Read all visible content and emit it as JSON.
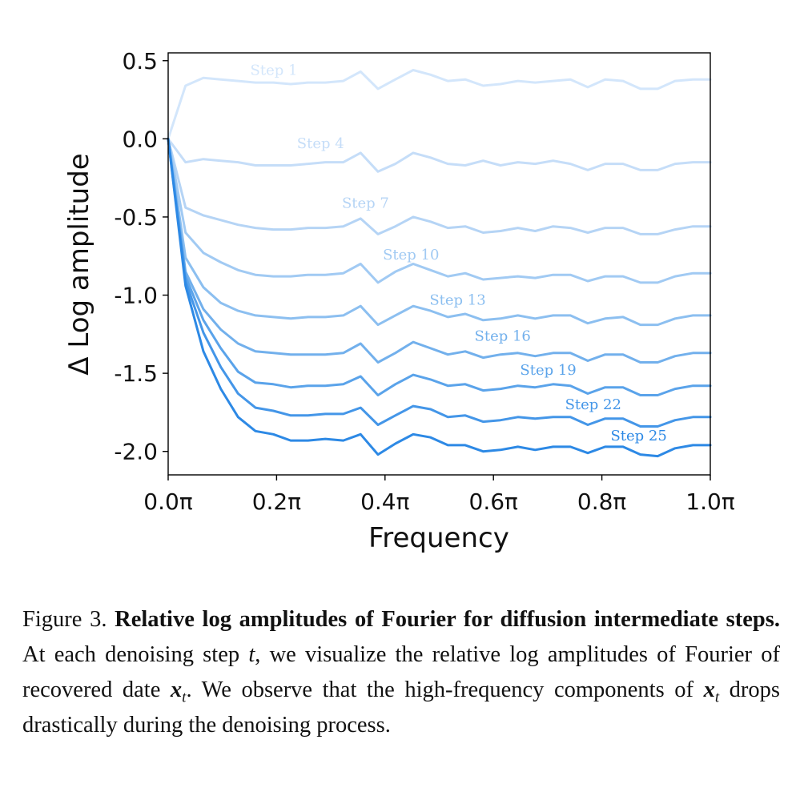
{
  "chart_data": {
    "type": "line",
    "xlabel": "Frequency",
    "ylabel": "Δ Log amplitude",
    "xlim": [
      0,
      1
    ],
    "ylim": [
      -2.15,
      0.55
    ],
    "xticks": [
      {
        "value": 0.0,
        "label": "0.0π"
      },
      {
        "value": 0.2,
        "label": "0.2π"
      },
      {
        "value": 0.4,
        "label": "0.4π"
      },
      {
        "value": 0.6,
        "label": "0.6π"
      },
      {
        "value": 0.8,
        "label": "0.8π"
      },
      {
        "value": 1.0,
        "label": "1.0π"
      }
    ],
    "yticks": [
      {
        "value": 0.5,
        "label": "0.5"
      },
      {
        "value": 0.0,
        "label": "0.0"
      },
      {
        "value": -0.5,
        "label": "-0.5"
      },
      {
        "value": -1.0,
        "label": "-1.0"
      },
      {
        "value": -1.5,
        "label": "-1.5"
      },
      {
        "value": -2.0,
        "label": "-2.0"
      }
    ],
    "x": [
      0.0,
      0.032,
      0.065,
      0.097,
      0.129,
      0.161,
      0.194,
      0.226,
      0.258,
      0.29,
      0.323,
      0.355,
      0.387,
      0.419,
      0.452,
      0.484,
      0.516,
      0.548,
      0.581,
      0.613,
      0.645,
      0.677,
      0.71,
      0.742,
      0.774,
      0.806,
      0.839,
      0.871,
      0.903,
      0.935,
      0.968,
      1.0
    ],
    "series": [
      {
        "name": "Step 1",
        "color": "#d3e6fb",
        "label_x": 0.195,
        "label_y": 0.44,
        "values": [
          0.0,
          0.34,
          0.39,
          0.38,
          0.37,
          0.36,
          0.36,
          0.35,
          0.36,
          0.36,
          0.37,
          0.43,
          0.32,
          0.38,
          0.44,
          0.41,
          0.37,
          0.38,
          0.34,
          0.35,
          0.37,
          0.36,
          0.37,
          0.38,
          0.33,
          0.38,
          0.37,
          0.32,
          0.32,
          0.37,
          0.38,
          0.38
        ]
      },
      {
        "name": "Step 4",
        "color": "#c5ddf8",
        "label_x": 0.281,
        "label_y": -0.03,
        "values": [
          0.0,
          -0.15,
          -0.13,
          -0.14,
          -0.15,
          -0.17,
          -0.17,
          -0.17,
          -0.16,
          -0.15,
          -0.15,
          -0.09,
          -0.21,
          -0.16,
          -0.09,
          -0.12,
          -0.16,
          -0.17,
          -0.14,
          -0.17,
          -0.15,
          -0.16,
          -0.14,
          -0.16,
          -0.2,
          -0.16,
          -0.16,
          -0.2,
          -0.2,
          -0.16,
          -0.15,
          -0.15
        ]
      },
      {
        "name": "Step 7",
        "color": "#b5d4f5",
        "label_x": 0.364,
        "label_y": -0.41,
        "values": [
          0.0,
          -0.44,
          -0.49,
          -0.52,
          -0.55,
          -0.57,
          -0.58,
          -0.58,
          -0.57,
          -0.57,
          -0.56,
          -0.51,
          -0.61,
          -0.56,
          -0.5,
          -0.53,
          -0.57,
          -0.56,
          -0.6,
          -0.59,
          -0.57,
          -0.59,
          -0.56,
          -0.57,
          -0.6,
          -0.57,
          -0.57,
          -0.61,
          -0.61,
          -0.58,
          -0.56,
          -0.56
        ]
      },
      {
        "name": "Step 10",
        "color": "#a1caf3",
        "label_x": 0.448,
        "label_y": -0.74,
        "values": [
          0.0,
          -0.6,
          -0.73,
          -0.79,
          -0.84,
          -0.87,
          -0.88,
          -0.88,
          -0.87,
          -0.87,
          -0.86,
          -0.8,
          -0.92,
          -0.85,
          -0.8,
          -0.84,
          -0.88,
          -0.86,
          -0.9,
          -0.89,
          -0.88,
          -0.89,
          -0.87,
          -0.87,
          -0.91,
          -0.88,
          -0.88,
          -0.92,
          -0.92,
          -0.88,
          -0.86,
          -0.86
        ]
      },
      {
        "name": "Step 13",
        "color": "#8cbff0",
        "label_x": 0.534,
        "label_y": -1.03,
        "values": [
          0.0,
          -0.76,
          -0.95,
          -1.05,
          -1.1,
          -1.13,
          -1.14,
          -1.15,
          -1.14,
          -1.14,
          -1.13,
          -1.07,
          -1.19,
          -1.13,
          -1.07,
          -1.1,
          -1.14,
          -1.12,
          -1.16,
          -1.15,
          -1.13,
          -1.15,
          -1.13,
          -1.13,
          -1.18,
          -1.15,
          -1.14,
          -1.19,
          -1.19,
          -1.15,
          -1.13,
          -1.13
        ]
      },
      {
        "name": "Step 16",
        "color": "#72b0ec",
        "label_x": 0.617,
        "label_y": -1.26,
        "values": [
          0.0,
          -0.85,
          -1.09,
          -1.22,
          -1.31,
          -1.36,
          -1.37,
          -1.38,
          -1.38,
          -1.38,
          -1.37,
          -1.31,
          -1.43,
          -1.37,
          -1.3,
          -1.34,
          -1.38,
          -1.36,
          -1.4,
          -1.38,
          -1.37,
          -1.39,
          -1.37,
          -1.37,
          -1.42,
          -1.38,
          -1.38,
          -1.43,
          -1.43,
          -1.39,
          -1.37,
          -1.37
        ]
      },
      {
        "name": "Step 19",
        "color": "#5aa3ea",
        "label_x": 0.701,
        "label_y": -1.48,
        "values": [
          0.0,
          -0.88,
          -1.16,
          -1.34,
          -1.49,
          -1.56,
          -1.57,
          -1.59,
          -1.58,
          -1.58,
          -1.57,
          -1.52,
          -1.64,
          -1.57,
          -1.51,
          -1.54,
          -1.58,
          -1.57,
          -1.61,
          -1.6,
          -1.58,
          -1.59,
          -1.57,
          -1.58,
          -1.63,
          -1.59,
          -1.59,
          -1.64,
          -1.64,
          -1.6,
          -1.58,
          -1.58
        ]
      },
      {
        "name": "Step 22",
        "color": "#4496e8",
        "label_x": 0.784,
        "label_y": -1.7,
        "values": [
          0.0,
          -0.91,
          -1.24,
          -1.46,
          -1.63,
          -1.72,
          -1.74,
          -1.77,
          -1.77,
          -1.76,
          -1.76,
          -1.72,
          -1.83,
          -1.77,
          -1.71,
          -1.73,
          -1.78,
          -1.77,
          -1.81,
          -1.8,
          -1.78,
          -1.79,
          -1.78,
          -1.78,
          -1.83,
          -1.79,
          -1.79,
          -1.84,
          -1.84,
          -1.8,
          -1.78,
          -1.78
        ]
      },
      {
        "name": "Step 25",
        "color": "#2d89e5",
        "label_x": 0.868,
        "label_y": -1.9,
        "values": [
          0.0,
          -0.94,
          -1.36,
          -1.6,
          -1.78,
          -1.87,
          -1.89,
          -1.93,
          -1.93,
          -1.92,
          -1.93,
          -1.89,
          -2.02,
          -1.95,
          -1.89,
          -1.91,
          -1.96,
          -1.96,
          -2.0,
          -1.99,
          -1.97,
          -1.99,
          -1.97,
          -1.97,
          -2.01,
          -1.97,
          -1.97,
          -2.02,
          -2.03,
          -1.98,
          -1.96,
          -1.96
        ]
      }
    ]
  },
  "caption": {
    "prefix": "Figure 3. ",
    "title": "Relative log amplitudes of Fourier for diffusion intermediate steps.",
    "text1": " At each denoising step ",
    "var_t": "t",
    "text2": ", we visualize the relative log amplitudes of Fourier of recovered date ",
    "var_x": "x",
    "sub_t": "t",
    "text3": ". We observe that the high-frequency components of ",
    "text4": " drops drastically during the denoising process."
  }
}
